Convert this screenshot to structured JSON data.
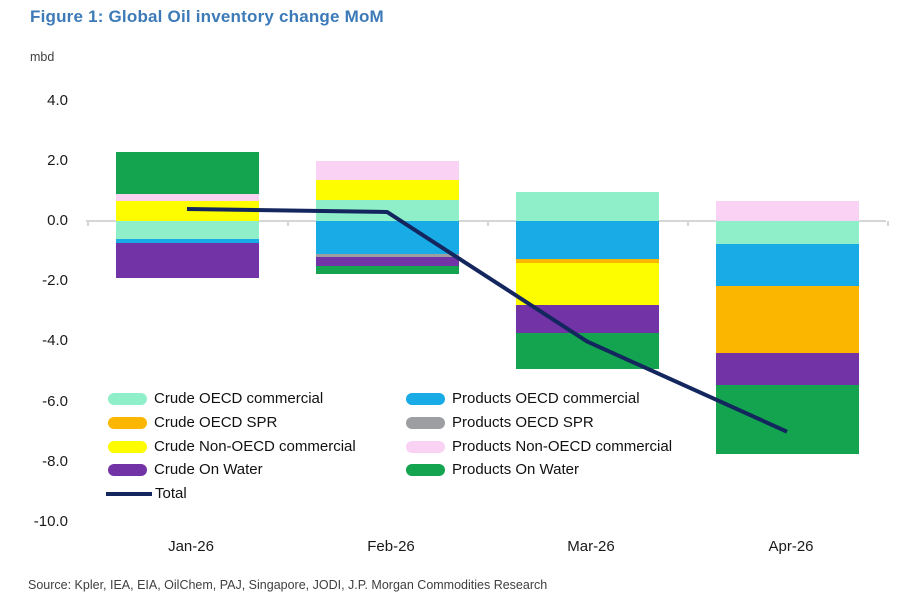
{
  "figure": {
    "title": "Figure 1: Global Oil inventory change MoM",
    "unit_label": "mbd",
    "source": "Source: Kpler, IEA, EIA, OilChem, PAJ, Singapore, JODI, J.P. Morgan Commodities Research"
  },
  "colors": {
    "title_text": "#3c7ab8",
    "axis_text": "#1a1a1a",
    "muted_text": "#3f3f3f",
    "zero_line": "#d6d6d6",
    "total_line": "#13265e"
  },
  "chart_data": {
    "type": "bar",
    "subtype": "stacked-bar-with-line",
    "title": "Figure 1: Global Oil inventory change MoM",
    "ylabel": "mbd",
    "categories": [
      "Jan-26",
      "Feb-26",
      "Mar-26",
      "Apr-26"
    ],
    "y_ticks": [
      4.0,
      2.0,
      0.0,
      -2.0,
      -4.0,
      -6.0,
      -8.0,
      -10.0
    ],
    "ylim": [
      -10.0,
      4.0
    ],
    "grid": "zero-line-only",
    "legend_position": "inside-bottom-left-two-columns",
    "series": [
      {
        "name": "Crude OECD commercial",
        "color": "#8fefc9",
        "values": [
          -0.6,
          0.7,
          0.95,
          -0.75
        ]
      },
      {
        "name": "Crude OECD SPR",
        "color": "#fbb600",
        "values": [
          0.0,
          0.0,
          -0.13,
          -2.25
        ]
      },
      {
        "name": "Crude Non-OECD commercial",
        "color": "#fdfd00",
        "values": [
          0.65,
          0.65,
          -1.4,
          0.0
        ]
      },
      {
        "name": "Crude On Water",
        "color": "#7233a6",
        "values": [
          -1.15,
          -0.3,
          -0.95,
          -1.05
        ]
      },
      {
        "name": "Products OECD commercial",
        "color": "#18abe6",
        "values": [
          -0.13,
          -1.1,
          -1.25,
          -1.4
        ]
      },
      {
        "name": "Products OECD SPR",
        "color": "#9c9ea1",
        "values": [
          0.0,
          -0.1,
          0.0,
          0.0
        ]
      },
      {
        "name": "Products Non-OECD commercial",
        "color": "#fad2f4",
        "values": [
          0.25,
          0.65,
          0.0,
          0.65
        ]
      },
      {
        "name": "Products On Water",
        "color": "#14a44f",
        "values": [
          1.4,
          -0.25,
          -1.2,
          -2.3
        ]
      }
    ],
    "total_series": {
      "name": "Total",
      "color": "#13265e",
      "values": [
        0.4,
        0.3,
        -4.0,
        -7.0
      ]
    },
    "stack_order_positive": [
      0,
      1,
      2,
      3,
      4,
      5,
      6,
      7
    ],
    "stack_order_negative": [
      0,
      4,
      1,
      5,
      2,
      3,
      7
    ],
    "legend_columns": {
      "left_series": [
        0,
        1,
        2,
        3
      ],
      "right_series": [
        4,
        5,
        6,
        7
      ],
      "left_includes_total": true
    }
  }
}
